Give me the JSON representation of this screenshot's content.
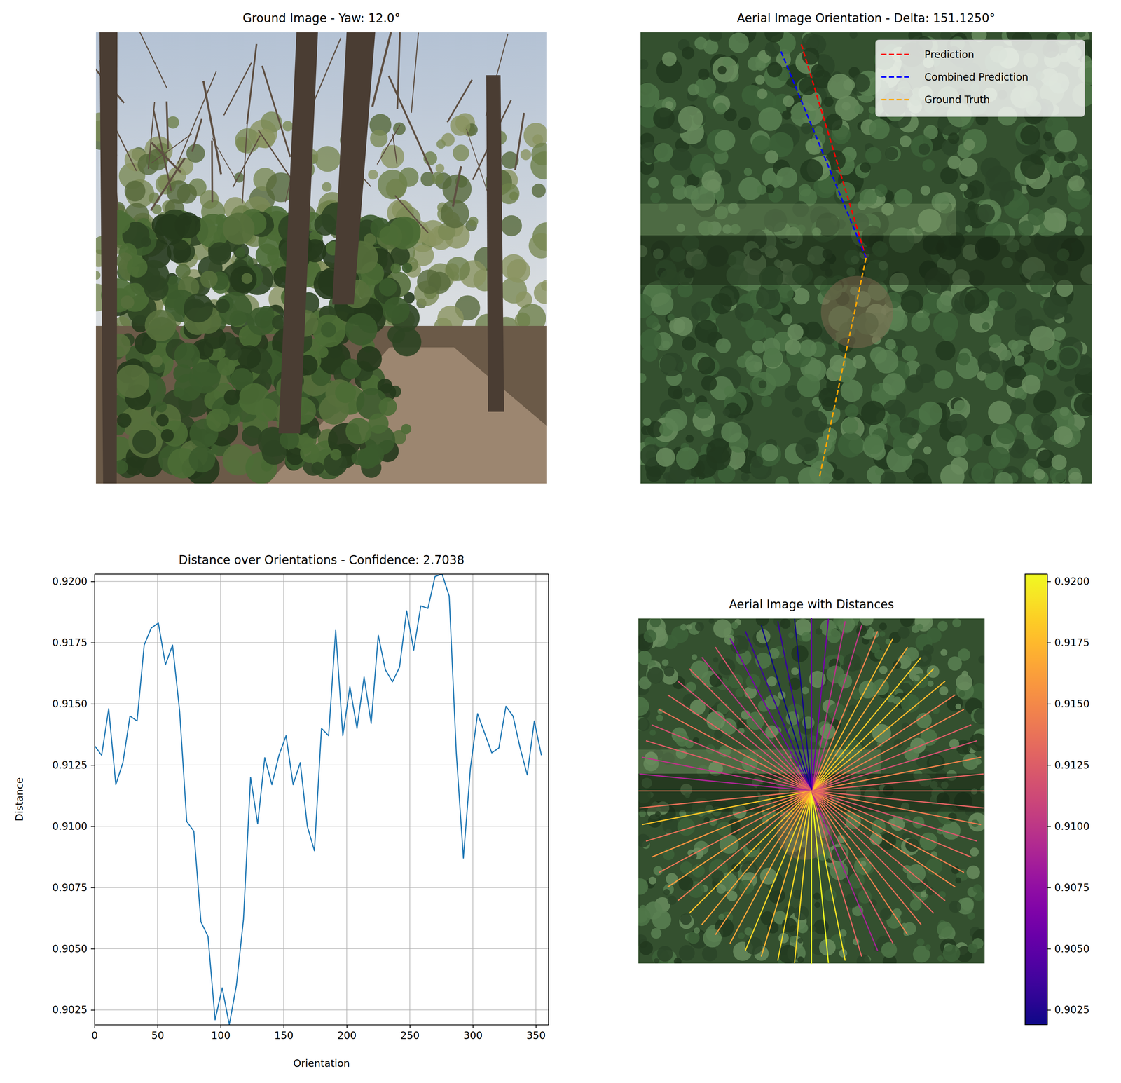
{
  "chart_data": [
    {
      "type": "image",
      "title": "Ground Image - Yaw: 12.0°"
    },
    {
      "type": "orientation",
      "title": "Aerial Image Orientation - Delta: 151.1250°",
      "legend": "upper right",
      "series": [
        {
          "name": "Prediction",
          "color": "#ff0000",
          "bearing": 343.125,
          "line_style": "dashed"
        },
        {
          "name": "Combined Prediction",
          "color": "#0000ff",
          "bearing": 337.6,
          "line_style": "dashed"
        },
        {
          "name": "Ground Truth",
          "color": "#ffa500",
          "bearing": 192,
          "line_style": "dashed"
        }
      ]
    },
    {
      "type": "line",
      "title": "Distance over Orientations - Confidence: 2.7038",
      "xlabel": "Orientation",
      "ylabel": "Distance",
      "grid": true,
      "x": [
        0,
        5.625,
        11.25,
        16.875,
        22.5,
        28.125,
        33.75,
        39.375,
        45,
        50.625,
        56.25,
        61.875,
        67.5,
        73.125,
        78.75,
        84.375,
        90,
        95.625,
        101.25,
        106.875,
        112.5,
        118.125,
        123.75,
        129.375,
        135,
        140.625,
        146.25,
        151.875,
        157.5,
        163.125,
        168.75,
        174.375,
        180,
        185.625,
        191.25,
        196.875,
        202.5,
        208.125,
        213.75,
        219.375,
        225,
        230.625,
        236.25,
        241.875,
        247.5,
        253.125,
        258.75,
        264.375,
        270,
        275.625,
        281.25,
        286.875,
        292.5,
        298.125,
        303.75,
        309.375,
        315,
        320.625,
        326.25,
        331.875,
        337.5,
        343.125,
        348.75,
        354.375
      ],
      "series": [
        {
          "color": "#1f77b4",
          "values": [
            0.9133,
            0.9129,
            0.9148,
            0.9117,
            0.9126,
            0.9145,
            0.9143,
            0.9174,
            0.9181,
            0.9183,
            0.9166,
            0.9174,
            0.9147,
            0.9102,
            0.9098,
            0.9061,
            0.9055,
            0.9021,
            0.9034,
            0.9019,
            0.9035,
            0.9062,
            0.912,
            0.9101,
            0.9128,
            0.9117,
            0.9129,
            0.9137,
            0.9117,
            0.9126,
            0.91,
            0.909,
            0.914,
            0.9137,
            0.918,
            0.9137,
            0.9157,
            0.914,
            0.9161,
            0.9142,
            0.9178,
            0.9164,
            0.9159,
            0.9165,
            0.9188,
            0.9172,
            0.919,
            0.9189,
            0.9202,
            0.9203,
            0.9194,
            0.913,
            0.9087,
            0.9124,
            0.9146,
            0.9138,
            0.913,
            0.9132,
            0.9149,
            0.9145,
            0.9132,
            0.9121,
            0.9143,
            0.9129
          ]
        }
      ],
      "xlim": [
        0,
        360
      ],
      "xticks": [
        0,
        50,
        100,
        150,
        200,
        250,
        300,
        350
      ],
      "ylim": [
        0.9019,
        0.9203
      ],
      "yticks": [
        0.9025,
        {
          "value": 0.905,
          "label": "0.9050"
        },
        0.9075,
        {
          "value": 0.91,
          "label": "0.9100"
        },
        0.9125,
        {
          "value": 0.915,
          "label": "0.9150"
        },
        0.9175,
        {
          "value": 0.92,
          "label": "0.9200"
        }
      ]
    },
    {
      "type": "radial",
      "title": "Aerial Image with Distances",
      "colorbar_range": [
        0.9019,
        0.9203
      ],
      "colorbar_ticks": [
        0.9025,
        {
          "value": 0.905,
          "label": "0.9050"
        },
        0.9075,
        {
          "value": 0.91,
          "label": "0.9100"
        },
        0.9125,
        {
          "value": 0.915,
          "label": "0.9150"
        },
        0.9175,
        {
          "value": 0.92,
          "label": "0.9200"
        }
      ]
    }
  ]
}
